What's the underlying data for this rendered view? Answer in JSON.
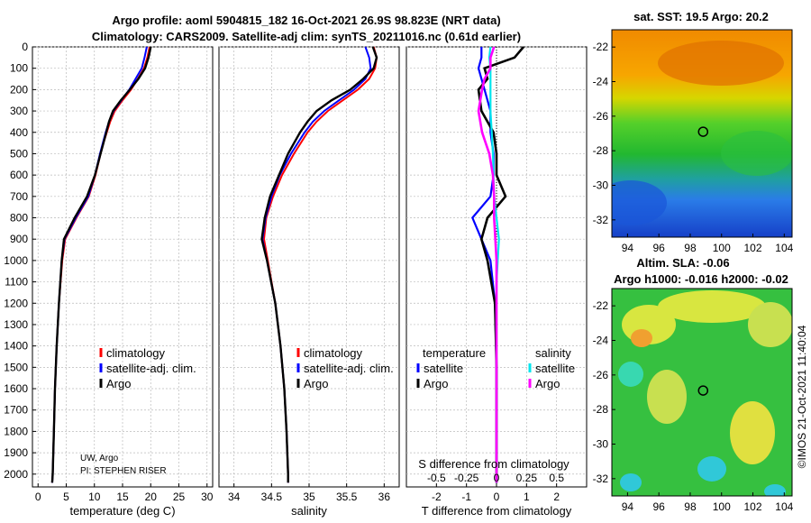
{
  "header": {
    "title_line1": "Argo profile: aoml 5904815_182 16-Oct-2021 26.9S 98.823E (NRT data)",
    "title_line2": "Climatology: CARS2009. Satellite-adj clim: synTS_20211016.nc (0.61d earlier)"
  },
  "copyright": "©IMOS 21-Oct-2021 11:40:04",
  "colors": {
    "climatology": "#ff0000",
    "satellite_adj": "#0000ff",
    "argo": "#000000",
    "satellite_s": "#00e5ee",
    "argo_s": "#ff00ff"
  },
  "chart_data": [
    {
      "type": "line",
      "name": "temperature",
      "xlabel": "temperature (deg C)",
      "ylabel": "",
      "xlim": [
        -1,
        31
      ],
      "ylim": [
        2060,
        0
      ],
      "xticks": [
        0,
        5,
        10,
        15,
        20,
        25,
        30
      ],
      "yticks": [
        0,
        100,
        200,
        300,
        400,
        500,
        600,
        700,
        800,
        900,
        1000,
        1100,
        1200,
        1300,
        1400,
        1500,
        1600,
        1700,
        1800,
        1900,
        2000
      ],
      "grid": true,
      "legend": [
        "climatology",
        "satellite-adj. clim.",
        "Argo"
      ],
      "annotations": [
        "UW, Argo",
        "PI: STEPHEN RISER"
      ],
      "series": [
        {
          "name": "climatology",
          "depth": [
            0,
            50,
            100,
            150,
            200,
            250,
            300,
            350,
            400,
            450,
            500,
            600,
            700,
            800,
            900,
            1000,
            1200,
            1400,
            1600,
            1800,
            2000,
            2040
          ],
          "values": [
            19.8,
            19.4,
            18.8,
            17.7,
            16.5,
            15.0,
            13.6,
            12.8,
            12.2,
            11.6,
            11.1,
            10.2,
            9.0,
            6.8,
            4.8,
            4.3,
            3.7,
            3.3,
            3.0,
            2.8,
            2.6,
            2.5
          ]
        },
        {
          "name": "satellite-adj. clim.",
          "depth": [
            0,
            50,
            100,
            150,
            200,
            250,
            300,
            350,
            400,
            450,
            500,
            600,
            700,
            800,
            900,
            1000,
            1200,
            1400,
            1600,
            1800,
            2000,
            2040
          ],
          "values": [
            19.3,
            18.9,
            18.4,
            17.3,
            16.2,
            14.8,
            13.4,
            12.6,
            12.0,
            11.5,
            11.0,
            10.1,
            8.9,
            6.7,
            4.7,
            4.2,
            3.7,
            3.3,
            3.0,
            2.8,
            2.6,
            2.5
          ]
        },
        {
          "name": "Argo",
          "depth": [
            0,
            50,
            100,
            150,
            200,
            250,
            300,
            350,
            400,
            450,
            500,
            600,
            700,
            800,
            900,
            1000,
            1200,
            1400,
            1600,
            1800,
            2000,
            2040
          ],
          "values": [
            20.0,
            19.6,
            19.0,
            17.8,
            16.3,
            14.7,
            13.3,
            12.6,
            12.1,
            11.6,
            11.1,
            10.1,
            8.7,
            6.5,
            4.6,
            4.2,
            3.7,
            3.3,
            3.0,
            2.8,
            2.6,
            2.5
          ]
        }
      ]
    },
    {
      "type": "line",
      "name": "salinity",
      "xlabel": "salinity",
      "xlim": [
        33.8,
        36.2
      ],
      "ylim": [
        2060,
        0
      ],
      "xticks": [
        34,
        34.5,
        35,
        35.5,
        36
      ],
      "xticklabels": [
        "34",
        "34.5",
        "35",
        "35.5",
        "36"
      ],
      "grid": true,
      "legend": [
        "climatology",
        "satellite-adj. clim.",
        "Argo"
      ],
      "series": [
        {
          "name": "climatology",
          "depth": [
            0,
            50,
            100,
            150,
            200,
            250,
            300,
            350,
            400,
            500,
            600,
            700,
            800,
            900,
            1000,
            1200,
            1400,
            1600,
            1800,
            2000,
            2040
          ],
          "values": [
            35.86,
            35.9,
            35.88,
            35.8,
            35.65,
            35.45,
            35.25,
            35.1,
            34.98,
            34.8,
            34.64,
            34.52,
            34.43,
            34.4,
            34.45,
            34.55,
            34.62,
            34.67,
            34.7,
            34.72,
            34.72
          ]
        },
        {
          "name": "satellite-adj. clim.",
          "depth": [
            0,
            50,
            100,
            150,
            200,
            250,
            300,
            350,
            400,
            500,
            600,
            700,
            800,
            900,
            1000,
            1200,
            1400,
            1600,
            1800,
            2000,
            2040
          ],
          "values": [
            35.75,
            35.8,
            35.82,
            35.75,
            35.6,
            35.4,
            35.2,
            35.05,
            34.94,
            34.76,
            34.61,
            34.5,
            34.42,
            34.38,
            34.44,
            34.55,
            34.62,
            34.67,
            34.7,
            34.72,
            34.72
          ]
        },
        {
          "name": "Argo",
          "depth": [
            0,
            50,
            100,
            150,
            200,
            250,
            300,
            350,
            400,
            500,
            600,
            700,
            800,
            900,
            1000,
            1200,
            1400,
            1600,
            1800,
            2000,
            2040
          ],
          "values": [
            35.85,
            35.9,
            35.86,
            35.72,
            35.55,
            35.3,
            35.1,
            34.98,
            34.88,
            34.72,
            34.6,
            34.48,
            34.41,
            34.37,
            34.44,
            34.55,
            34.62,
            34.67,
            34.7,
            34.72,
            34.72
          ]
        }
      ]
    },
    {
      "type": "line",
      "name": "difference",
      "xlabel": "T difference from climatology",
      "top_xlabel": "S difference from climatology",
      "xlim": [
        -3,
        3
      ],
      "ylim": [
        2060,
        0
      ],
      "xticks": [
        -2,
        -1,
        0,
        1,
        2
      ],
      "s_ticks": [
        -0.5,
        -0.25,
        0,
        0.25,
        0.5
      ],
      "s_ticklabels": [
        "-0.5",
        "-0.25",
        "0",
        "0.25",
        "0.5"
      ],
      "grid": true,
      "legend_titles": [
        "temperature",
        "salinity"
      ],
      "legend": [
        "satellite",
        "Argo",
        "satellite",
        "Argo"
      ],
      "series": [
        {
          "name": "T satellite",
          "depth": [
            0,
            50,
            100,
            200,
            300,
            400,
            500,
            600,
            700,
            800,
            900,
            1000,
            1200,
            1500,
            2040
          ],
          "values": [
            -0.5,
            -0.5,
            -0.6,
            -0.4,
            -0.2,
            -0.2,
            -0.1,
            -0.1,
            -0.2,
            -0.8,
            -0.5,
            -0.2,
            -0.05,
            0.0,
            0.0
          ]
        },
        {
          "name": "T Argo",
          "depth": [
            0,
            50,
            100,
            150,
            200,
            300,
            400,
            500,
            600,
            700,
            800,
            900,
            1000,
            1200,
            1500,
            2040
          ],
          "values": [
            0.9,
            0.6,
            -0.4,
            -0.3,
            -0.6,
            -0.5,
            -0.1,
            0.0,
            0.0,
            0.3,
            -0.3,
            -0.5,
            -0.3,
            -0.05,
            0.0,
            0.0
          ]
        },
        {
          "name": "S satellite",
          "depth": [
            0,
            50,
            100,
            200,
            300,
            400,
            500,
            700,
            900,
            1100,
            1500,
            2040
          ],
          "values": [
            -0.05,
            -0.06,
            -0.05,
            -0.05,
            -0.05,
            -0.04,
            -0.03,
            -0.02,
            0.02,
            0.0,
            0.0,
            0.0
          ]
        },
        {
          "name": "S Argo",
          "depth": [
            0,
            50,
            100,
            150,
            200,
            300,
            400,
            500,
            600,
            700,
            800,
            900,
            1000,
            1200,
            1500,
            2040
          ],
          "values": [
            -0.02,
            -0.05,
            -0.05,
            -0.1,
            -0.12,
            -0.15,
            -0.12,
            -0.06,
            -0.03,
            -0.02,
            -0.02,
            -0.01,
            0.0,
            0.0,
            0.0,
            0.0
          ]
        }
      ]
    },
    {
      "type": "heatmap",
      "name": "sst_map",
      "title": "sat. SST: 19.5 Argo: 20.2",
      "xlim": [
        93,
        104.5
      ],
      "ylim": [
        -33,
        -21
      ],
      "xticks": [
        94,
        96,
        98,
        100,
        102,
        104
      ],
      "yticks": [
        -22,
        -24,
        -26,
        -28,
        -30,
        -32
      ],
      "marker": [
        98.823,
        -26.9
      ]
    },
    {
      "type": "heatmap",
      "name": "sla_map",
      "title_line1": "Altim. SLA: -0.06",
      "title_line2": "Argo h1000: -0.016 h2000: -0.02",
      "xlim": [
        93,
        104.5
      ],
      "ylim": [
        -33,
        -21
      ],
      "xticks": [
        94,
        96,
        98,
        100,
        102,
        104
      ],
      "yticks": [
        -22,
        -24,
        -26,
        -28,
        -30,
        -32
      ],
      "marker": [
        98.823,
        -26.9
      ]
    }
  ]
}
